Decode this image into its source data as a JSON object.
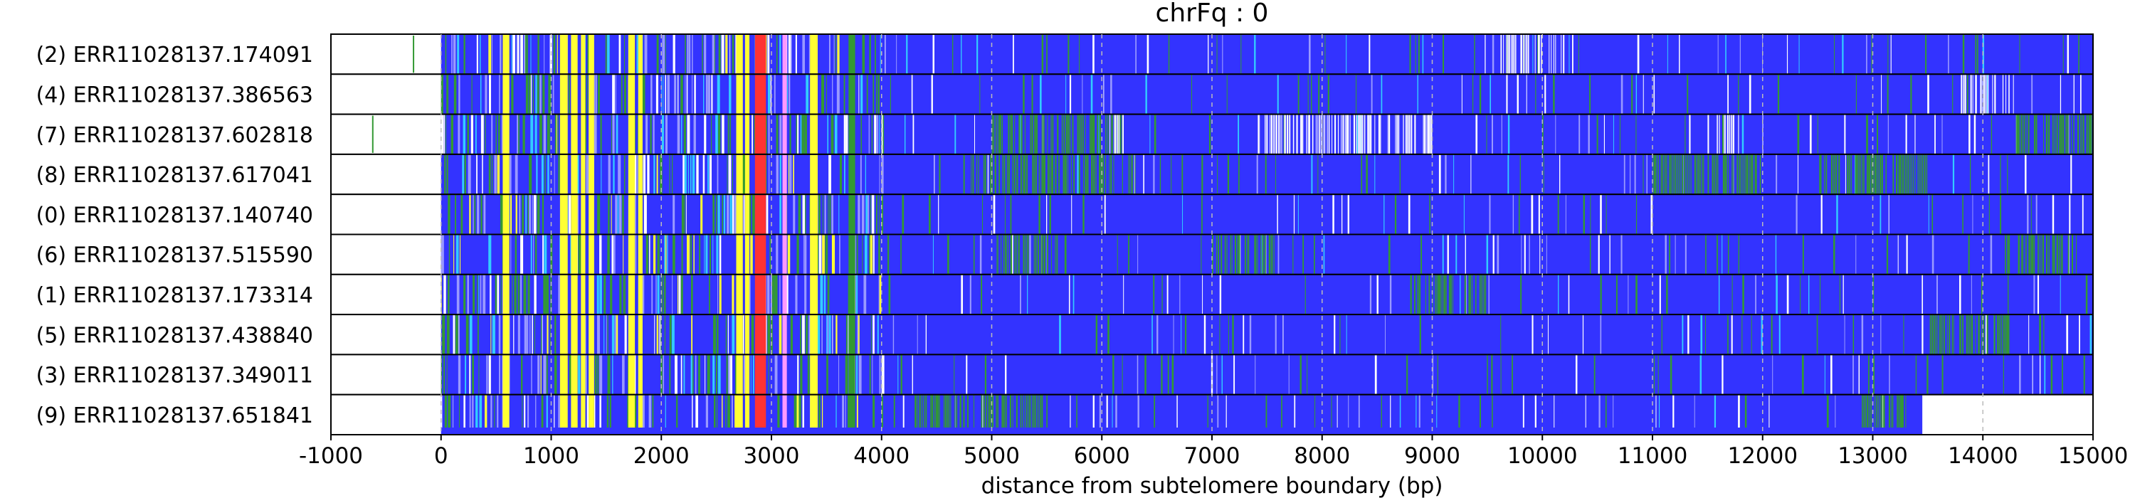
{
  "chart_data": {
    "type": "heatmap",
    "title": "chrFq : 0",
    "xlabel": "distance from subtelomere boundary (bp)",
    "ylabel": "",
    "xlim": [
      -1000,
      15000
    ],
    "xticks": [
      -1000,
      0,
      1000,
      2000,
      3000,
      4000,
      5000,
      6000,
      7000,
      8000,
      9000,
      10000,
      11000,
      12000,
      13000,
      14000,
      15000
    ],
    "xtick_labels": [
      "-1000",
      "0",
      "1000",
      "2000",
      "3000",
      "4000",
      "5000",
      "6000",
      "7000",
      "8000",
      "9000",
      "10000",
      "11000",
      "12000",
      "13000",
      "14000",
      "15000"
    ],
    "grid": "vertical dashed at ticks",
    "base_color": "#3333ff",
    "colors": {
      "background": "#3333ff",
      "green": "#339933",
      "white": "#ffffff",
      "cyan": "#33ccff",
      "light_blue": "#9999ff",
      "yellow": "#ffff33",
      "red": "#ff3333",
      "pink": "#ff99ff"
    },
    "rows": [
      {
        "label": "(2) ERR11028137.174091",
        "start": 0,
        "end": 15000,
        "pre_marks": [
          -250
        ]
      },
      {
        "label": "(4) ERR11028137.386563",
        "start": 0,
        "end": 15000,
        "pre_marks": []
      },
      {
        "label": "(7) ERR11028137.602818",
        "start": 0,
        "end": 15000,
        "pre_marks": [
          -620
        ]
      },
      {
        "label": "(8) ERR11028137.617041",
        "start": 0,
        "end": 15000,
        "pre_marks": []
      },
      {
        "label": "(0) ERR11028137.140740",
        "start": 0,
        "end": 15000,
        "pre_marks": []
      },
      {
        "label": "(6) ERR11028137.515590",
        "start": 0,
        "end": 15000,
        "pre_marks": []
      },
      {
        "label": "(1) ERR11028137.173314",
        "start": 0,
        "end": 15000,
        "pre_marks": []
      },
      {
        "label": "(5) ERR11028137.438840",
        "start": 0,
        "end": 15000,
        "pre_marks": []
      },
      {
        "label": "(3) ERR11028137.349011",
        "start": 0,
        "end": 15000,
        "pre_marks": []
      },
      {
        "label": "(9) ERR11028137.651841",
        "start": 0,
        "end": 13450,
        "pre_marks": []
      }
    ],
    "shared_bands": [
      {
        "from": 560,
        "to": 620,
        "color": "yellow"
      },
      {
        "from": 1080,
        "to": 1150,
        "color": "yellow"
      },
      {
        "from": 1180,
        "to": 1240,
        "color": "yellow"
      },
      {
        "from": 1270,
        "to": 1310,
        "color": "yellow"
      },
      {
        "from": 1340,
        "to": 1390,
        "color": "yellow"
      },
      {
        "from": 1700,
        "to": 1760,
        "color": "yellow"
      },
      {
        "from": 1790,
        "to": 1830,
        "color": "yellow"
      },
      {
        "from": 2680,
        "to": 2740,
        "color": "yellow"
      },
      {
        "from": 2760,
        "to": 2800,
        "color": "yellow"
      },
      {
        "from": 2850,
        "to": 2950,
        "color": "red"
      },
      {
        "from": 3100,
        "to": 3140,
        "color": "pink"
      },
      {
        "from": 3350,
        "to": 3420,
        "color": "yellow"
      },
      {
        "from": 3700,
        "to": 3760,
        "color": "green"
      }
    ],
    "dense_regions": [
      {
        "row": 0,
        "from": 9600,
        "to": 10200,
        "color": "white"
      },
      {
        "row": 0,
        "from": 13900,
        "to": 13960,
        "color": "green"
      },
      {
        "row": 1,
        "from": 13800,
        "to": 14300,
        "color": "white"
      },
      {
        "row": 2,
        "from": 5000,
        "to": 6200,
        "color": "green"
      },
      {
        "row": 2,
        "from": 6050,
        "to": 6200,
        "color": "white"
      },
      {
        "row": 2,
        "from": 7400,
        "to": 9000,
        "color": "white"
      },
      {
        "row": 2,
        "from": 11500,
        "to": 11800,
        "color": "white"
      },
      {
        "row": 2,
        "from": 14300,
        "to": 15000,
        "color": "green"
      },
      {
        "row": 3,
        "from": 4700,
        "to": 6300,
        "color": "green"
      },
      {
        "row": 3,
        "from": 11000,
        "to": 12000,
        "color": "green"
      },
      {
        "row": 3,
        "from": 12500,
        "to": 13500,
        "color": "green"
      },
      {
        "row": 5,
        "from": 5000,
        "to": 5600,
        "color": "green"
      },
      {
        "row": 5,
        "from": 7000,
        "to": 7600,
        "color": "green"
      },
      {
        "row": 5,
        "from": 14200,
        "to": 14850,
        "color": "green"
      },
      {
        "row": 6,
        "from": 8800,
        "to": 9500,
        "color": "green"
      },
      {
        "row": 7,
        "from": 13500,
        "to": 14300,
        "color": "green"
      },
      {
        "row": 9,
        "from": 4300,
        "to": 5500,
        "color": "green"
      },
      {
        "row": 9,
        "from": 12900,
        "to": 13300,
        "color": "green"
      }
    ]
  }
}
